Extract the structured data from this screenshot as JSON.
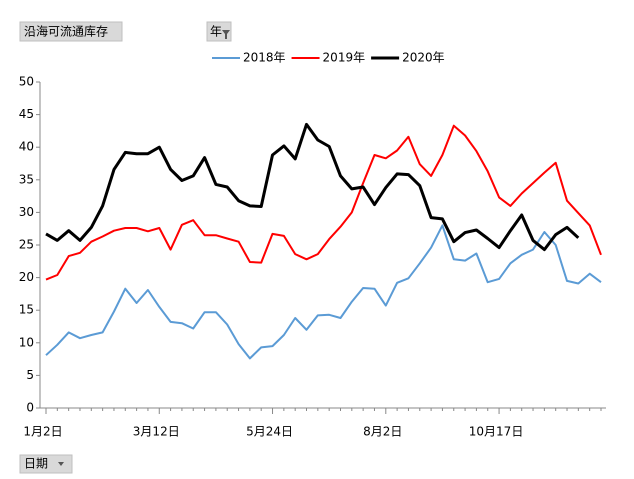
{
  "field_buttons": {
    "value_field": "沿海可流通库存",
    "legend_field": "年",
    "axis_field": "日期"
  },
  "chart_data": {
    "type": "line",
    "categories": [
      "1月2日",
      null,
      null,
      null,
      null,
      null,
      null,
      null,
      null,
      null,
      "3月12日",
      null,
      null,
      null,
      null,
      null,
      null,
      null,
      null,
      null,
      "5月24日",
      null,
      null,
      null,
      null,
      null,
      null,
      null,
      null,
      null,
      "8月2日",
      null,
      null,
      null,
      null,
      null,
      null,
      null,
      null,
      null,
      "10月17日",
      null,
      null,
      null,
      null,
      null,
      null,
      null,
      null,
      null
    ],
    "series": [
      {
        "name": "2018年",
        "color": "#5b9bd5",
        "values": [
          8.1,
          9.7,
          11.6,
          10.7,
          11.2,
          11.6,
          14.8,
          18.3,
          16.1,
          18.1,
          15.5,
          13.2,
          13.0,
          12.2,
          14.7,
          14.7,
          12.8,
          9.8,
          7.6,
          9.3,
          9.5,
          11.2,
          13.8,
          12.0,
          14.2,
          14.3,
          13.8,
          16.3,
          18.4,
          18.3,
          15.7,
          19.2,
          19.9,
          22.2,
          24.6,
          28.0,
          22.8,
          22.6,
          23.7,
          19.3,
          19.8,
          22.2,
          23.5,
          24.3,
          27.0,
          25.0,
          19.5,
          19.1,
          20.6,
          19.3
        ]
      },
      {
        "name": "2019年",
        "color": "#ff0000",
        "values": [
          19.7,
          20.4,
          23.3,
          23.8,
          25.5,
          26.3,
          27.2,
          27.6,
          27.6,
          27.1,
          27.6,
          24.3,
          28.1,
          28.8,
          26.5,
          26.5,
          26.0,
          25.5,
          22.4,
          22.3,
          26.7,
          26.4,
          23.6,
          22.8,
          23.6,
          25.9,
          27.8,
          30.0,
          34.5,
          38.8,
          38.3,
          39.5,
          41.6,
          37.4,
          35.6,
          38.8,
          43.3,
          41.8,
          39.4,
          36.3,
          32.3,
          31.0,
          32.9,
          34.5,
          36.1,
          37.6,
          31.8,
          29.9,
          28.0,
          23.5
        ]
      },
      {
        "name": "2020年",
        "color": "#000000",
        "values": [
          26.7,
          25.7,
          27.2,
          25.7,
          27.7,
          31.0,
          36.6,
          39.2,
          39.0,
          39.0,
          40.0,
          36.6,
          34.9,
          35.6,
          38.4,
          34.3,
          33.9,
          31.8,
          31.0,
          30.9,
          38.8,
          40.2,
          38.2,
          43.5,
          41.1,
          40.1,
          35.6,
          33.6,
          33.9,
          31.2,
          33.8,
          35.9,
          35.8,
          34.1,
          29.2,
          29.0,
          25.5,
          26.9,
          27.3,
          26.0,
          24.6,
          27.2,
          29.6,
          25.7,
          24.3,
          26.6,
          27.7,
          26.1,
          null,
          null
        ]
      }
    ],
    "ylim": [
      0,
      50
    ],
    "yticks": [
      0,
      5,
      10,
      15,
      20,
      25,
      30,
      35,
      40,
      45,
      50
    ],
    "grid": false,
    "legend": "top"
  }
}
